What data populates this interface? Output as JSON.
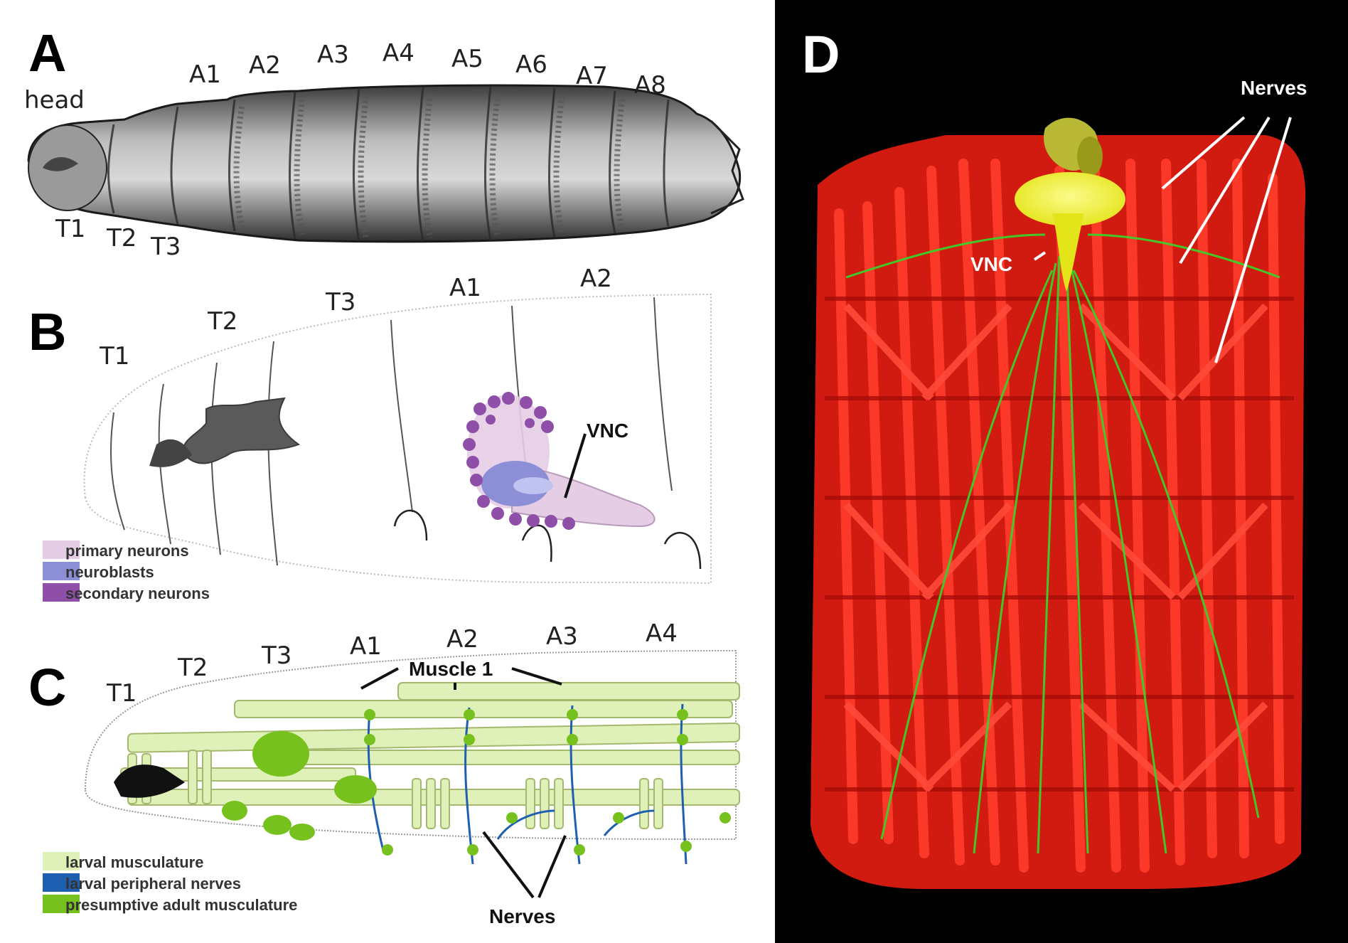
{
  "panels": {
    "A": {
      "letter": "A",
      "head_label": "head",
      "thoracic_labels": [
        "T1",
        "T2",
        "T3"
      ],
      "abdominal_labels": [
        "A1",
        "A2",
        "A3",
        "A4",
        "A5",
        "A6",
        "A7",
        "A8"
      ]
    },
    "B": {
      "letter": "B",
      "segment_labels": [
        "T1",
        "T2",
        "T3",
        "A1",
        "A2"
      ],
      "vnc_label": "VNC",
      "legend": [
        {
          "label": "primary neurons",
          "color": "#e6cde6"
        },
        {
          "label": "neuroblasts",
          "color": "#8c8fd6"
        },
        {
          "label": "secondary neurons",
          "color": "#8f4fa8"
        }
      ]
    },
    "C": {
      "letter": "C",
      "segment_labels": [
        "T1",
        "T2",
        "T3",
        "A1",
        "A2",
        "A3",
        "A4"
      ],
      "muscle_label": "Muscle 1",
      "nerves_label": "Nerves",
      "legend": [
        {
          "label": "larval musculature",
          "color": "#dff0b8"
        },
        {
          "label": "larval peripheral nerves",
          "color": "#1f5fb0"
        },
        {
          "label": "presumptive adult musculature",
          "color": "#77c11f"
        }
      ]
    },
    "D": {
      "letter": "D",
      "nerves_label": "Nerves",
      "vnc_label": "VNC"
    }
  },
  "colors": {
    "muscle_red": "#e4261a",
    "nerve_green": "#3bd12a",
    "brain_yellow": "#f2f21c",
    "larva_gray": "#6a6a6a",
    "panel_d_bg": "#000000"
  }
}
